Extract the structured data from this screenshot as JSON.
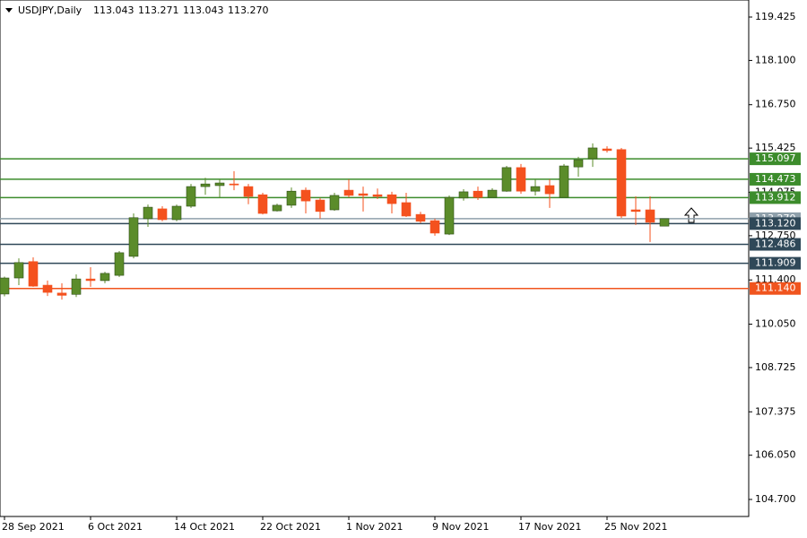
{
  "chart_data": {
    "type": "candlestick",
    "title": "USDJPY,Daily",
    "header_ohlc": [
      "113.043",
      "113.271",
      "113.043",
      "113.270"
    ],
    "categories": [
      "28 Sep 2021",
      null,
      null,
      null,
      null,
      null,
      "6 Oct 2021",
      null,
      null,
      null,
      null,
      null,
      "14 Oct 2021",
      null,
      null,
      null,
      null,
      null,
      "22 Oct 2021",
      null,
      null,
      null,
      null,
      null,
      "1 Nov 2021",
      null,
      null,
      null,
      null,
      null,
      "9 Nov 2021",
      null,
      null,
      null,
      null,
      null,
      "17 Nov 2021",
      null,
      null,
      null,
      null,
      null,
      "25 Nov 2021",
      null,
      null,
      null,
      null
    ],
    "open": [
      110.97,
      111.46,
      111.96,
      111.24,
      111.0,
      110.96,
      111.43,
      111.38,
      111.54,
      112.12,
      113.27,
      113.57,
      113.24,
      113.65,
      114.25,
      114.28,
      114.33,
      114.25,
      114.0,
      113.51,
      113.68,
      114.14,
      113.84,
      113.54,
      114.14,
      114.03,
      114.0,
      114.0,
      113.76,
      113.4,
      113.21,
      112.8,
      113.9,
      114.11,
      113.92,
      114.11,
      114.83,
      114.11,
      114.28,
      113.92,
      114.85,
      115.1,
      115.4,
      115.38,
      113.54,
      113.54,
      113.043
    ],
    "high": [
      111.5,
      112.06,
      112.09,
      111.38,
      111.3,
      111.57,
      111.79,
      111.65,
      112.28,
      113.43,
      113.7,
      113.65,
      113.7,
      114.33,
      114.52,
      114.47,
      114.72,
      114.33,
      114.06,
      113.73,
      114.22,
      114.22,
      113.9,
      114.06,
      114.47,
      114.25,
      114.19,
      114.09,
      114.06,
      113.48,
      113.27,
      113.98,
      114.17,
      114.25,
      114.2,
      114.88,
      114.94,
      114.47,
      114.47,
      114.94,
      115.16,
      115.57,
      115.48,
      115.43,
      113.95,
      113.95,
      113.271
    ],
    "low": [
      110.9,
      111.24,
      111.19,
      110.91,
      110.8,
      110.88,
      111.19,
      111.3,
      111.49,
      112.06,
      113.02,
      113.19,
      113.19,
      113.6,
      114.0,
      113.92,
      114.14,
      113.71,
      113.4,
      113.49,
      113.6,
      113.43,
      113.27,
      113.51,
      113.92,
      113.49,
      113.87,
      113.43,
      113.32,
      113.13,
      112.75,
      112.77,
      113.82,
      113.84,
      113.9,
      114.09,
      114.03,
      113.98,
      113.6,
      113.9,
      114.55,
      114.85,
      115.29,
      113.29,
      113.08,
      112.56,
      113.043
    ],
    "close": [
      111.46,
      111.93,
      111.21,
      111.02,
      110.93,
      111.43,
      111.38,
      111.6,
      112.23,
      113.3,
      113.62,
      113.24,
      113.65,
      114.25,
      114.33,
      114.36,
      114.3,
      113.95,
      113.43,
      113.68,
      114.11,
      113.81,
      113.49,
      113.98,
      113.98,
      113.98,
      113.95,
      113.73,
      113.35,
      113.19,
      112.83,
      113.92,
      114.09,
      113.92,
      114.14,
      114.83,
      114.11,
      114.25,
      114.03,
      114.88,
      115.07,
      115.43,
      115.35,
      113.35,
      113.49,
      113.16,
      113.27
    ],
    "up_color": "#5b8c2a",
    "down_color": "#f4511e",
    "ylim": [
      104.18,
      119.945
    ],
    "yticks": [
      {
        "value": 119.425,
        "label": "119.425"
      },
      {
        "value": 118.1,
        "label": "118.100"
      },
      {
        "value": 116.75,
        "label": "116.750"
      },
      {
        "value": 115.425,
        "label": "115.425"
      },
      {
        "value": 114.075,
        "label": "114.075"
      },
      {
        "value": 112.75,
        "label": "112.750"
      },
      {
        "value": 111.4,
        "label": "111.400"
      },
      {
        "value": 110.05,
        "label": "110.050"
      },
      {
        "value": 108.725,
        "label": "108.725"
      },
      {
        "value": 107.375,
        "label": "107.375"
      },
      {
        "value": 106.05,
        "label": "106.050"
      },
      {
        "value": 104.7,
        "label": "104.700"
      }
    ],
    "levels": [
      {
        "value": 115.097,
        "label": "115.097",
        "color": "#3c8c2c"
      },
      {
        "value": 114.473,
        "label": "114.473",
        "color": "#3c8c2c"
      },
      {
        "value": 113.912,
        "label": "113.912",
        "color": "#3c8c2c"
      },
      {
        "value": 113.27,
        "label": "113.270",
        "color": "#8fa0ab"
      },
      {
        "value": 113.12,
        "label": "113.120",
        "color": "#2f4858"
      },
      {
        "value": 112.486,
        "label": "112.486",
        "color": "#2f4858"
      },
      {
        "value": 111.909,
        "label": "111.909",
        "color": "#2f4858"
      },
      {
        "value": 111.14,
        "label": "111.140",
        "color": "#f0541e"
      }
    ]
  }
}
